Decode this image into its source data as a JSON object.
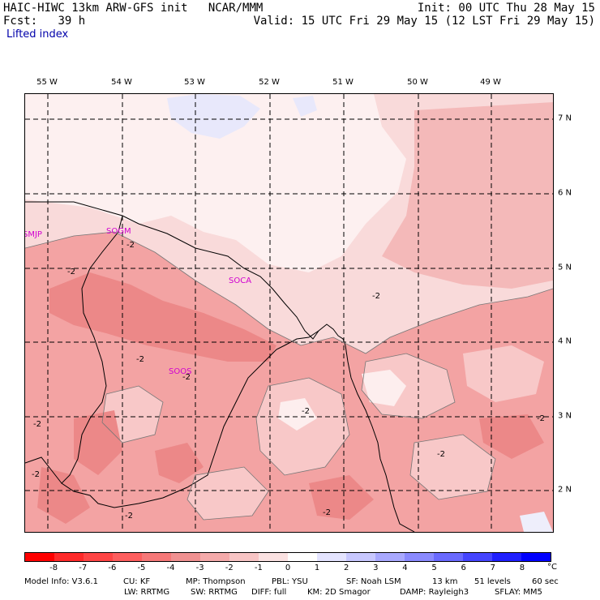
{
  "header": {
    "model": "HAIC-HIWC 13km ARW-GFS init",
    "org": "NCAR/MMM",
    "fcst_label": "Fcst:",
    "fcst_value": "39 h",
    "init": "Init: 00 UTC Thu 28 May 15",
    "valid": "Valid: 15 UTC Fri 29 May 15 (12 LST Fri 29 May 15)",
    "field": "Lifted index"
  },
  "lon_labels": [
    "55 W",
    "54 W",
    "53 W",
    "52 W",
    "51 W",
    "50 W",
    "49 W"
  ],
  "lat_labels": [
    "7 N",
    "6 N",
    "5 N",
    "4 N",
    "3 N",
    "2 N"
  ],
  "stations": [
    "SMJP",
    "SOGM",
    "SOCA",
    "SOOS"
  ],
  "contour_label": "-2",
  "colorbar": {
    "ticks": [
      "-8",
      "-7",
      "-6",
      "-5",
      "-4",
      "-3",
      "-2",
      "-1",
      "0",
      "1",
      "2",
      "3",
      "4",
      "5",
      "6",
      "7",
      "8"
    ],
    "unit": "°C",
    "colors": [
      "#ff0000",
      "#ff2a2a",
      "#ff4545",
      "#fd5e5e",
      "#f67878",
      "#f09191",
      "#f4aaaa",
      "#f8c5c5",
      "#fbe2e2",
      "#ffffff",
      "#e4e4ff",
      "#c8c8ff",
      "#a9a9ff",
      "#8a8aff",
      "#6a6aff",
      "#4545ff",
      "#1f1fff",
      "#0000ff"
    ]
  },
  "footer": {
    "line1": [
      "Model Info: V3.6.1",
      "CU: KF",
      "MP: Thompson",
      "PBL: YSU",
      "SF: Noah LSM",
      "13 km",
      "51 levels",
      "60 sec"
    ],
    "line2": [
      "LW: RRTMG",
      "SW: RRTMG",
      "DIFF: full",
      "KM: 2D Smagor",
      "DAMP: Rayleigh3",
      "SFLAY: MM5"
    ]
  }
}
